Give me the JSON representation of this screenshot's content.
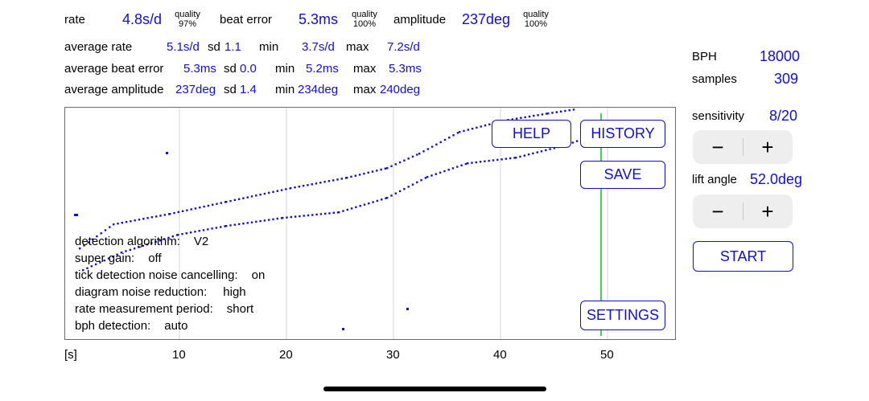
{
  "top_row": {
    "rate_label": "rate",
    "rate_value": "4.8s/d",
    "rate_quality_label": "quality",
    "rate_quality_value": "97%",
    "beat_error_label": "beat error",
    "beat_error_value": "5.3ms",
    "beat_quality_label": "quality",
    "beat_quality_value": "100%",
    "amplitude_label": "amplitude",
    "amplitude_value": "237deg",
    "amp_quality_label": "quality",
    "amp_quality_value": "100%"
  },
  "stats": {
    "avg_rate_label": "average rate",
    "avg_rate_value": "5.1s/d",
    "avg_rate_sd_label": "sd",
    "avg_rate_sd_value": "1.1",
    "avg_rate_min_label": "min",
    "avg_rate_min_value": "3.7s/d",
    "avg_rate_max_label": "max",
    "avg_rate_max_value": "7.2s/d",
    "avg_be_label": "average beat error",
    "avg_be_value": "5.3ms",
    "avg_be_sd_label": "sd",
    "avg_be_sd_value": "0.0",
    "avg_be_min_label": "min",
    "avg_be_min_value": "5.2ms",
    "avg_be_max_label": "max",
    "avg_be_max_value": "5.3ms",
    "avg_amp_label": "average amplitude",
    "avg_amp_value": "237deg",
    "avg_amp_sd_label": "sd",
    "avg_amp_sd_value": "1.4",
    "avg_amp_min_label": "min",
    "avg_amp_min_value": "234deg",
    "avg_amp_max_label": "max",
    "avg_amp_max_value": "240deg"
  },
  "side": {
    "bph_label": "BPH",
    "bph_value": "18000",
    "samples_label": "samples",
    "samples_value": "309",
    "sensitivity_label": "sensitivity",
    "sensitivity_value": "8/20",
    "lift_angle_label": "lift angle",
    "lift_angle_value": "52.0deg",
    "minus_glyph": "−",
    "plus_glyph": "+",
    "start_label": "START"
  },
  "buttons": {
    "help": "HELP",
    "history": "HISTORY",
    "save": "SAVE",
    "settings": "SETTINGS"
  },
  "info": {
    "line1_label": "detection algorithm:",
    "line1_value": "V2",
    "line2_label": "super gain:",
    "line2_value": "off",
    "line3_label": "tick detection noise cancelling:",
    "line3_value": "on",
    "line4_label": "diagram noise reduction:",
    "line4_value": "high",
    "line5_label": "rate measurement period:",
    "line5_value": "short",
    "line6_label": "bph detection:",
    "line6_value": "auto"
  },
  "axis": {
    "unit": "[s]",
    "ticks": [
      "10",
      "20",
      "30",
      "40",
      "50"
    ]
  },
  "colors": {
    "accent": "#1010d0",
    "marker": "#00cc00",
    "grid": "#d4d4d4",
    "stepper_bg": "#eeeeee"
  }
}
